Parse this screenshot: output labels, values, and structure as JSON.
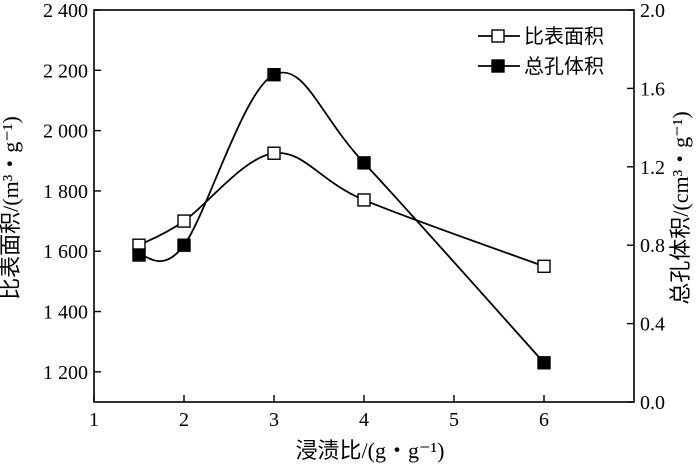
{
  "chart_data": {
    "type": "line",
    "title": "",
    "xlabel": "浸渍比/(g・g⁻¹)",
    "ylabel_left": "比表面积/(m³・g⁻¹)",
    "ylabel_right": "总孔体积/(cm³・g⁻¹)",
    "xlim": [
      1,
      7
    ],
    "x_ticks": [
      "1",
      "2",
      "3",
      "4",
      "5",
      "6"
    ],
    "ylim_left": [
      1100,
      2400
    ],
    "y_ticks_left": [
      "1 200",
      "1 400",
      "1 600",
      "1 800",
      "2 000",
      "2 200",
      "2 400"
    ],
    "ylim_right": [
      0.0,
      2.0
    ],
    "y_ticks_right": [
      "0.0",
      "0.4",
      "0.8",
      "1.2",
      "1.6",
      "2.0"
    ],
    "legend_position": "top-right",
    "grid": false,
    "series": [
      {
        "name": "比表面积",
        "axis": "left",
        "marker": "open-square",
        "x": [
          1.5,
          2,
          3,
          4,
          6
        ],
        "y": [
          1620,
          1700,
          1925,
          1770,
          1550
        ]
      },
      {
        "name": "总孔体积",
        "axis": "right",
        "marker": "filled-square",
        "x": [
          1.5,
          2,
          3,
          4,
          6
        ],
        "y": [
          0.75,
          0.8,
          1.67,
          1.22,
          0.2
        ]
      }
    ]
  }
}
